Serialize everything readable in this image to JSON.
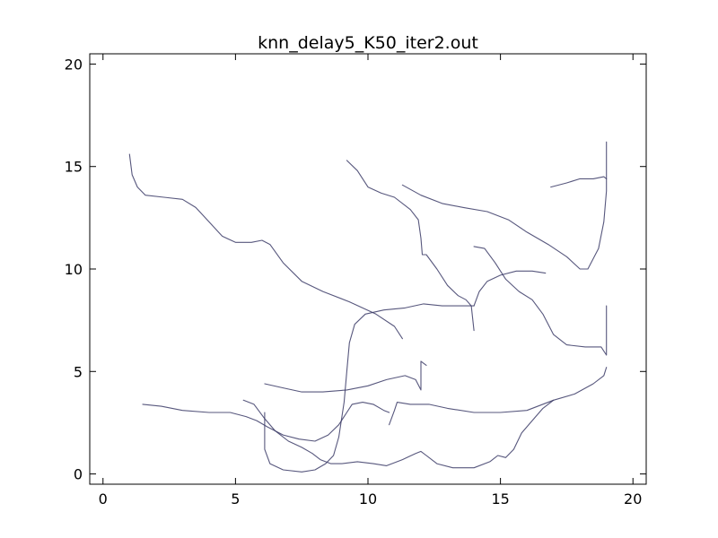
{
  "chart_data": {
    "type": "line",
    "title": "knn_delay5_K50_iter2.out",
    "xlabel": "",
    "ylabel": "",
    "xlim": [
      -0.5,
      20.5
    ],
    "ylim": [
      -0.5,
      20.5
    ],
    "xticks": [
      0,
      5,
      10,
      15,
      20
    ],
    "yticks": [
      0,
      5,
      10,
      15,
      20
    ],
    "grid": false,
    "series": [
      {
        "color": "#3a3a66",
        "values": [
          [
            1.0,
            15.6
          ],
          [
            1.1,
            14.6
          ],
          [
            1.3,
            14.0
          ],
          [
            1.6,
            13.6
          ],
          [
            2.3,
            13.5
          ],
          [
            3.0,
            13.4
          ],
          [
            3.5,
            13.0
          ],
          [
            4.0,
            12.3
          ],
          [
            4.5,
            11.6
          ],
          [
            5.0,
            11.3
          ],
          [
            5.6,
            11.3
          ],
          [
            6.0,
            11.4
          ],
          [
            6.3,
            11.2
          ],
          [
            6.8,
            10.3
          ],
          [
            7.5,
            9.4
          ],
          [
            8.3,
            8.9
          ],
          [
            9.3,
            8.4
          ],
          [
            10.3,
            7.8
          ],
          [
            11.0,
            7.2
          ],
          [
            11.3,
            6.6
          ]
        ]
      },
      {
        "color": "#3a3a66",
        "values": [
          [
            9.2,
            15.3
          ],
          [
            9.6,
            14.8
          ],
          [
            10.0,
            14.0
          ],
          [
            10.5,
            13.7
          ],
          [
            11.0,
            13.5
          ],
          [
            11.6,
            12.9
          ],
          [
            11.9,
            12.4
          ],
          [
            12.0,
            11.5
          ],
          [
            12.05,
            10.7
          ],
          [
            12.2,
            10.7
          ],
          [
            12.6,
            10.0
          ],
          [
            13.0,
            9.2
          ],
          [
            13.4,
            8.7
          ],
          [
            13.7,
            8.5
          ],
          [
            13.9,
            8.2
          ],
          [
            14.0,
            7.0
          ]
        ]
      },
      {
        "color": "#3a3a66",
        "values": [
          [
            11.3,
            14.1
          ],
          [
            12.0,
            13.6
          ],
          [
            12.8,
            13.2
          ],
          [
            13.6,
            13.0
          ],
          [
            14.5,
            12.8
          ],
          [
            15.3,
            12.4
          ],
          [
            16.0,
            11.8
          ],
          [
            16.8,
            11.2
          ],
          [
            17.5,
            10.6
          ],
          [
            18.0,
            10.0
          ],
          [
            18.3,
            10.0
          ],
          [
            18.7,
            11.0
          ],
          [
            18.9,
            12.3
          ],
          [
            19.0,
            13.8
          ],
          [
            19.0,
            16.2
          ]
        ]
      },
      {
        "color": "#3a3a66",
        "values": [
          [
            16.9,
            14.0
          ],
          [
            17.5,
            14.2
          ],
          [
            18.0,
            14.4
          ],
          [
            18.5,
            14.4
          ],
          [
            18.9,
            14.5
          ],
          [
            19.0,
            14.4
          ]
        ]
      },
      {
        "color": "#3a3a66",
        "values": [
          [
            14.0,
            11.1
          ],
          [
            14.4,
            11.0
          ],
          [
            14.8,
            10.3
          ],
          [
            15.2,
            9.5
          ],
          [
            15.7,
            8.9
          ],
          [
            16.2,
            8.5
          ],
          [
            16.6,
            7.8
          ],
          [
            17.0,
            6.8
          ],
          [
            17.5,
            6.3
          ],
          [
            18.2,
            6.2
          ],
          [
            18.8,
            6.2
          ],
          [
            19.0,
            5.8
          ],
          [
            19.0,
            8.2
          ]
        ]
      },
      {
        "color": "#3a3a66",
        "values": [
          [
            6.1,
            4.4
          ],
          [
            6.8,
            4.2
          ],
          [
            7.5,
            4.0
          ],
          [
            8.3,
            4.0
          ],
          [
            9.2,
            4.1
          ],
          [
            10.0,
            4.3
          ],
          [
            10.7,
            4.6
          ],
          [
            11.4,
            4.8
          ],
          [
            11.8,
            4.6
          ],
          [
            12.0,
            4.1
          ],
          [
            12.0,
            5.5
          ],
          [
            12.2,
            5.3
          ]
        ]
      },
      {
        "color": "#3a3a66",
        "values": [
          [
            1.5,
            3.4
          ],
          [
            2.2,
            3.3
          ],
          [
            3.0,
            3.1
          ],
          [
            4.0,
            3.0
          ],
          [
            4.8,
            3.0
          ],
          [
            5.4,
            2.8
          ],
          [
            5.8,
            2.6
          ],
          [
            6.2,
            2.3
          ],
          [
            6.8,
            1.9
          ],
          [
            7.4,
            1.7
          ],
          [
            8.0,
            1.6
          ],
          [
            8.5,
            1.9
          ],
          [
            8.9,
            2.4
          ],
          [
            9.2,
            3.0
          ],
          [
            9.4,
            3.4
          ],
          [
            9.8,
            3.5
          ],
          [
            10.2,
            3.4
          ],
          [
            10.6,
            3.1
          ],
          [
            10.8,
            3.0
          ]
        ]
      },
      {
        "color": "#3a3a66",
        "values": [
          [
            10.8,
            2.4
          ],
          [
            11.0,
            3.1
          ],
          [
            11.1,
            3.5
          ],
          [
            11.6,
            3.4
          ],
          [
            12.3,
            3.4
          ],
          [
            13.0,
            3.2
          ],
          [
            14.0,
            3.0
          ],
          [
            15.0,
            3.0
          ],
          [
            16.0,
            3.1
          ],
          [
            17.0,
            3.6
          ],
          [
            17.8,
            3.9
          ],
          [
            18.5,
            4.4
          ],
          [
            18.9,
            4.8
          ],
          [
            19.0,
            5.2
          ]
        ]
      },
      {
        "color": "#3a3a66",
        "values": [
          [
            5.3,
            3.6
          ],
          [
            5.7,
            3.4
          ],
          [
            6.1,
            2.7
          ],
          [
            6.5,
            2.1
          ],
          [
            7.0,
            1.6
          ],
          [
            7.5,
            1.3
          ],
          [
            7.9,
            1.0
          ],
          [
            8.2,
            0.7
          ],
          [
            8.6,
            0.5
          ],
          [
            9.0,
            0.5
          ],
          [
            9.6,
            0.6
          ],
          [
            10.2,
            0.5
          ],
          [
            10.7,
            0.4
          ],
          [
            11.3,
            0.7
          ],
          [
            11.8,
            1.0
          ],
          [
            12.0,
            1.1
          ],
          [
            12.2,
            0.9
          ],
          [
            12.6,
            0.5
          ],
          [
            13.2,
            0.3
          ],
          [
            14.0,
            0.3
          ],
          [
            14.6,
            0.6
          ],
          [
            14.9,
            0.9
          ],
          [
            15.2,
            0.8
          ],
          [
            15.5,
            1.2
          ],
          [
            15.8,
            2.0
          ],
          [
            16.2,
            2.6
          ],
          [
            16.6,
            3.2
          ],
          [
            17.0,
            3.6
          ]
        ]
      },
      {
        "color": "#3a3a66",
        "values": [
          [
            6.1,
            3.0
          ],
          [
            6.1,
            1.2
          ],
          [
            6.3,
            0.5
          ],
          [
            6.8,
            0.2
          ],
          [
            7.5,
            0.1
          ],
          [
            8.0,
            0.2
          ],
          [
            8.4,
            0.5
          ],
          [
            8.7,
            0.9
          ],
          [
            8.9,
            1.8
          ],
          [
            9.1,
            3.5
          ],
          [
            9.2,
            5.0
          ],
          [
            9.3,
            6.4
          ],
          [
            9.5,
            7.3
          ],
          [
            9.9,
            7.8
          ],
          [
            10.6,
            8.0
          ],
          [
            11.4,
            8.1
          ],
          [
            12.1,
            8.3
          ],
          [
            12.8,
            8.2
          ],
          [
            13.3,
            8.2
          ],
          [
            13.8,
            8.2
          ],
          [
            14.0,
            8.2
          ]
        ]
      },
      {
        "color": "#3a3a66",
        "values": [
          [
            14.0,
            8.2
          ],
          [
            14.2,
            8.9
          ],
          [
            14.5,
            9.4
          ],
          [
            15.0,
            9.7
          ],
          [
            15.6,
            9.9
          ],
          [
            16.2,
            9.9
          ],
          [
            16.7,
            9.8
          ]
        ]
      }
    ]
  }
}
